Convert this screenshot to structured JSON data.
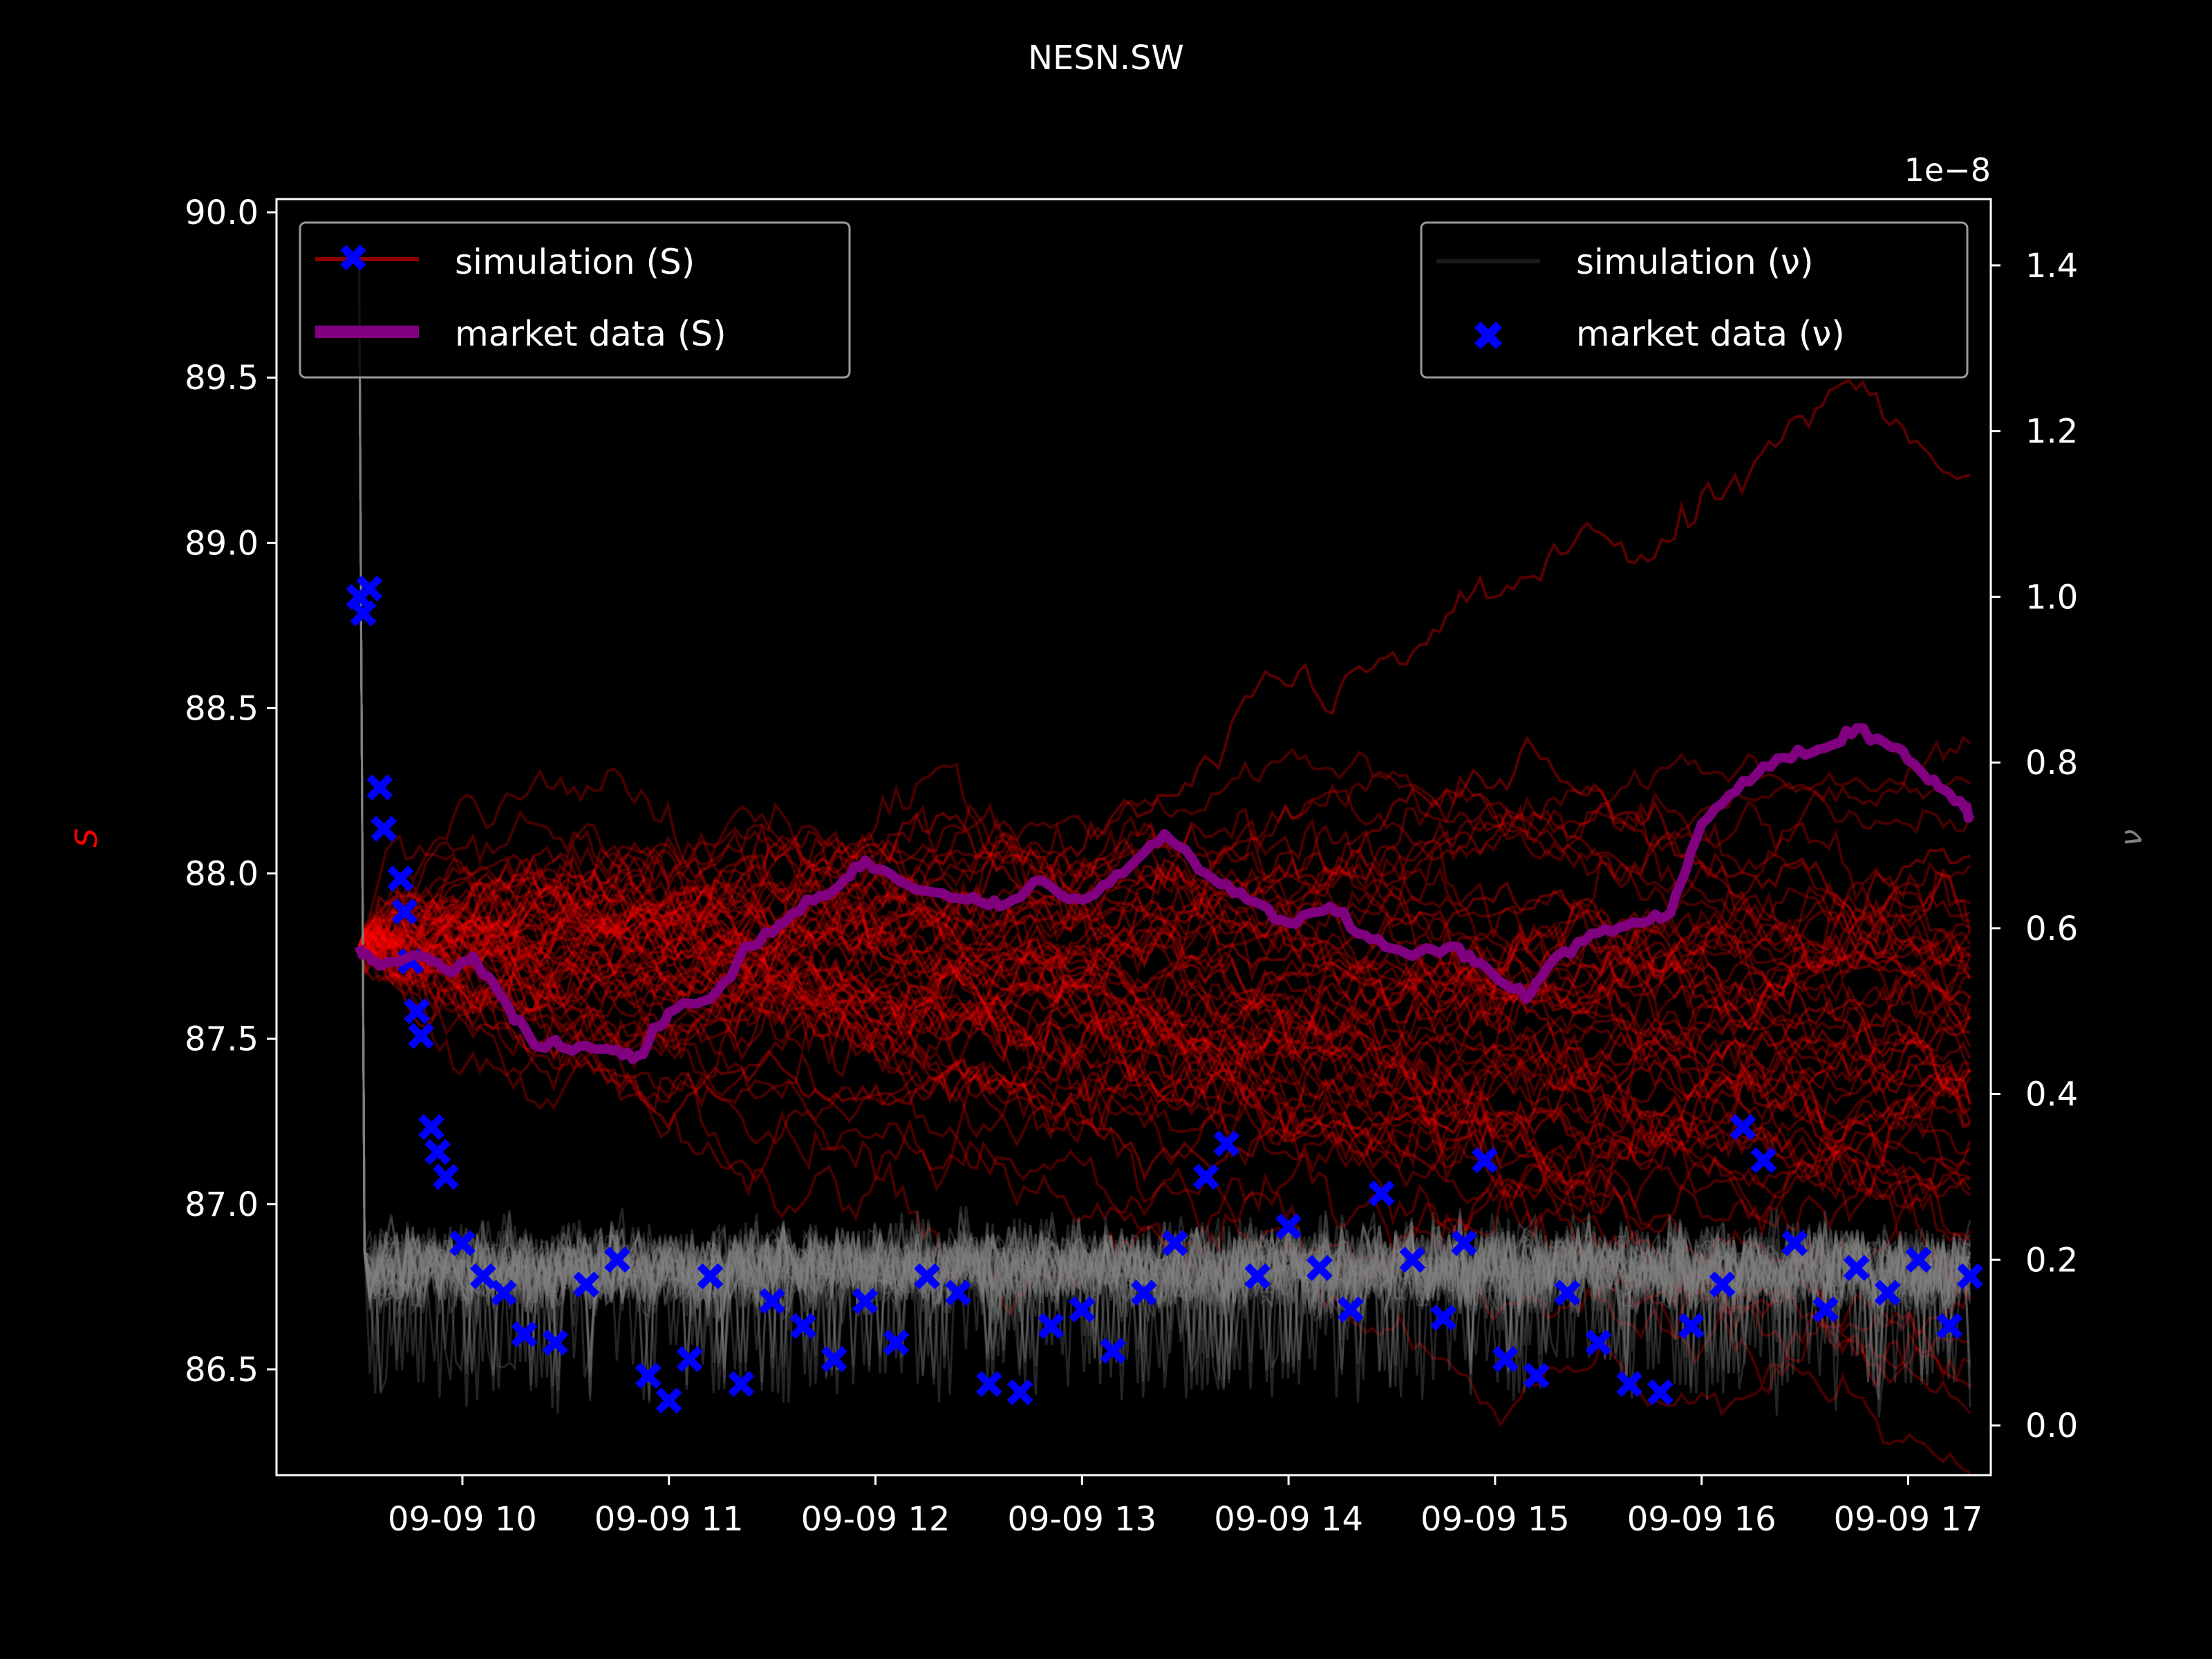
{
  "chart_data": {
    "type": "line",
    "title": "NESN.SW",
    "xlabel": "",
    "ylabel_left": "S",
    "ylabel_right": "ν",
    "right_axis_offset_text": "1e−8",
    "x_ticks": [
      "09-09 10",
      "09-09 11",
      "09-09 12",
      "09-09 13",
      "09-09 14",
      "09-09 15",
      "09-09 16",
      "09-09 17"
    ],
    "x_range_hours": [
      9.1,
      17.4
    ],
    "y_left": {
      "lim": [
        86.18,
        90.04
      ],
      "ticks": [
        "86.5",
        "87.0",
        "87.5",
        "88.0",
        "88.5",
        "89.0",
        "89.5",
        "90.0"
      ]
    },
    "y_right": {
      "lim": [
        -0.06,
        1.48
      ],
      "ticks": [
        "0.0",
        "0.2",
        "0.4",
        "0.6",
        "0.8",
        "1.0",
        "1.2",
        "1.4"
      ],
      "scale_note": "1e-8"
    },
    "grid": false,
    "legend_left": {
      "placement": "upper-left",
      "entries": [
        {
          "label": "simulation (S)",
          "color": "#8b0000"
        },
        {
          "label": "market data (S)",
          "color": "#800080"
        }
      ]
    },
    "legend_right": {
      "placement": "upper-right",
      "entries": [
        {
          "label": "simulation (ν)",
          "color": "#1a1a1a"
        },
        {
          "label": "market data (ν)",
          "color": "#0000ff"
        }
      ]
    },
    "colors": {
      "simulation_S": "#ff0000",
      "market_S": "#800080",
      "simulation_nu": "#808080",
      "market_nu": "#0000ff",
      "ylabel_left": "#ff0000",
      "ylabel_right": "#808080"
    },
    "series": [
      {
        "name": "market data (S)",
        "axis": "left",
        "x": [
          9.5,
          9.6,
          9.8,
          9.95,
          10.05,
          10.2,
          10.35,
          10.5,
          10.7,
          10.85,
          11.0,
          11.2,
          11.4,
          11.6,
          11.8,
          11.95,
          12.2,
          12.45,
          12.6,
          12.8,
          13.0,
          13.2,
          13.4,
          13.6,
          13.8,
          14.0,
          14.2,
          14.4,
          14.6,
          14.8,
          14.95,
          15.15,
          15.3,
          15.5,
          15.7,
          15.85,
          16.0,
          16.2,
          16.4,
          16.6,
          16.75,
          16.95,
          17.1,
          17.25,
          17.3
        ],
        "y": [
          87.78,
          87.72,
          87.75,
          87.7,
          87.75,
          87.62,
          87.48,
          87.47,
          87.47,
          87.45,
          87.58,
          87.62,
          87.78,
          87.88,
          87.95,
          88.04,
          87.95,
          87.92,
          87.9,
          87.98,
          87.92,
          88.0,
          88.12,
          88.0,
          87.92,
          87.85,
          87.9,
          87.8,
          87.75,
          87.78,
          87.72,
          87.62,
          87.75,
          87.82,
          87.85,
          87.88,
          88.15,
          88.28,
          88.35,
          88.38,
          88.44,
          88.38,
          88.28,
          88.22,
          88.18
        ]
      },
      {
        "name": "market data (ν)",
        "axis": "right",
        "x": [
          9.5,
          9.52,
          9.55,
          9.6,
          9.62,
          9.7,
          9.72,
          9.75,
          9.78,
          9.8,
          9.85,
          9.88,
          9.92,
          10.0,
          10.1,
          10.2,
          10.3,
          10.45,
          10.6,
          10.75,
          10.9,
          11.0,
          11.1,
          11.2,
          11.35,
          11.5,
          11.65,
          11.8,
          11.95,
          12.1,
          12.25,
          12.4,
          12.55,
          12.7,
          12.85,
          13.0,
          13.15,
          13.3,
          13.45,
          13.6,
          13.7,
          13.85,
          14.0,
          14.15,
          14.3,
          14.45,
          14.6,
          14.75,
          14.85,
          14.95,
          15.05,
          15.2,
          15.35,
          15.5,
          15.65,
          15.8,
          15.95,
          16.1,
          16.2,
          16.3,
          16.45,
          16.6,
          16.75,
          16.9,
          17.05,
          17.2,
          17.3
        ],
        "y": [
          1.0,
          0.98,
          1.01,
          0.77,
          0.72,
          0.66,
          0.62,
          0.56,
          0.5,
          0.47,
          0.36,
          0.33,
          0.3,
          0.22,
          0.18,
          0.16,
          0.11,
          0.1,
          0.17,
          0.2,
          0.06,
          0.03,
          0.08,
          0.18,
          0.05,
          0.15,
          0.12,
          0.08,
          0.15,
          0.1,
          0.18,
          0.16,
          0.05,
          0.04,
          0.12,
          0.14,
          0.09,
          0.16,
          0.22,
          0.3,
          0.34,
          0.18,
          0.24,
          0.19,
          0.14,
          0.28,
          0.2,
          0.13,
          0.22,
          0.32,
          0.08,
          0.06,
          0.16,
          0.1,
          0.05,
          0.04,
          0.12,
          0.17,
          0.36,
          0.32,
          0.22,
          0.14,
          0.19,
          0.16,
          0.2,
          0.12,
          0.18
        ]
      },
      {
        "name": "simulation (S)",
        "axis": "left",
        "paths": 60,
        "start": 87.78,
        "x_start": 9.5,
        "x_end": 17.3,
        "end_range": [
          86.5,
          89.4
        ]
      },
      {
        "name": "simulation (ν)",
        "axis": "right",
        "paths": 40,
        "start": 1.42,
        "level": 0.19,
        "x_start": 9.5,
        "x_end": 17.3
      }
    ]
  }
}
